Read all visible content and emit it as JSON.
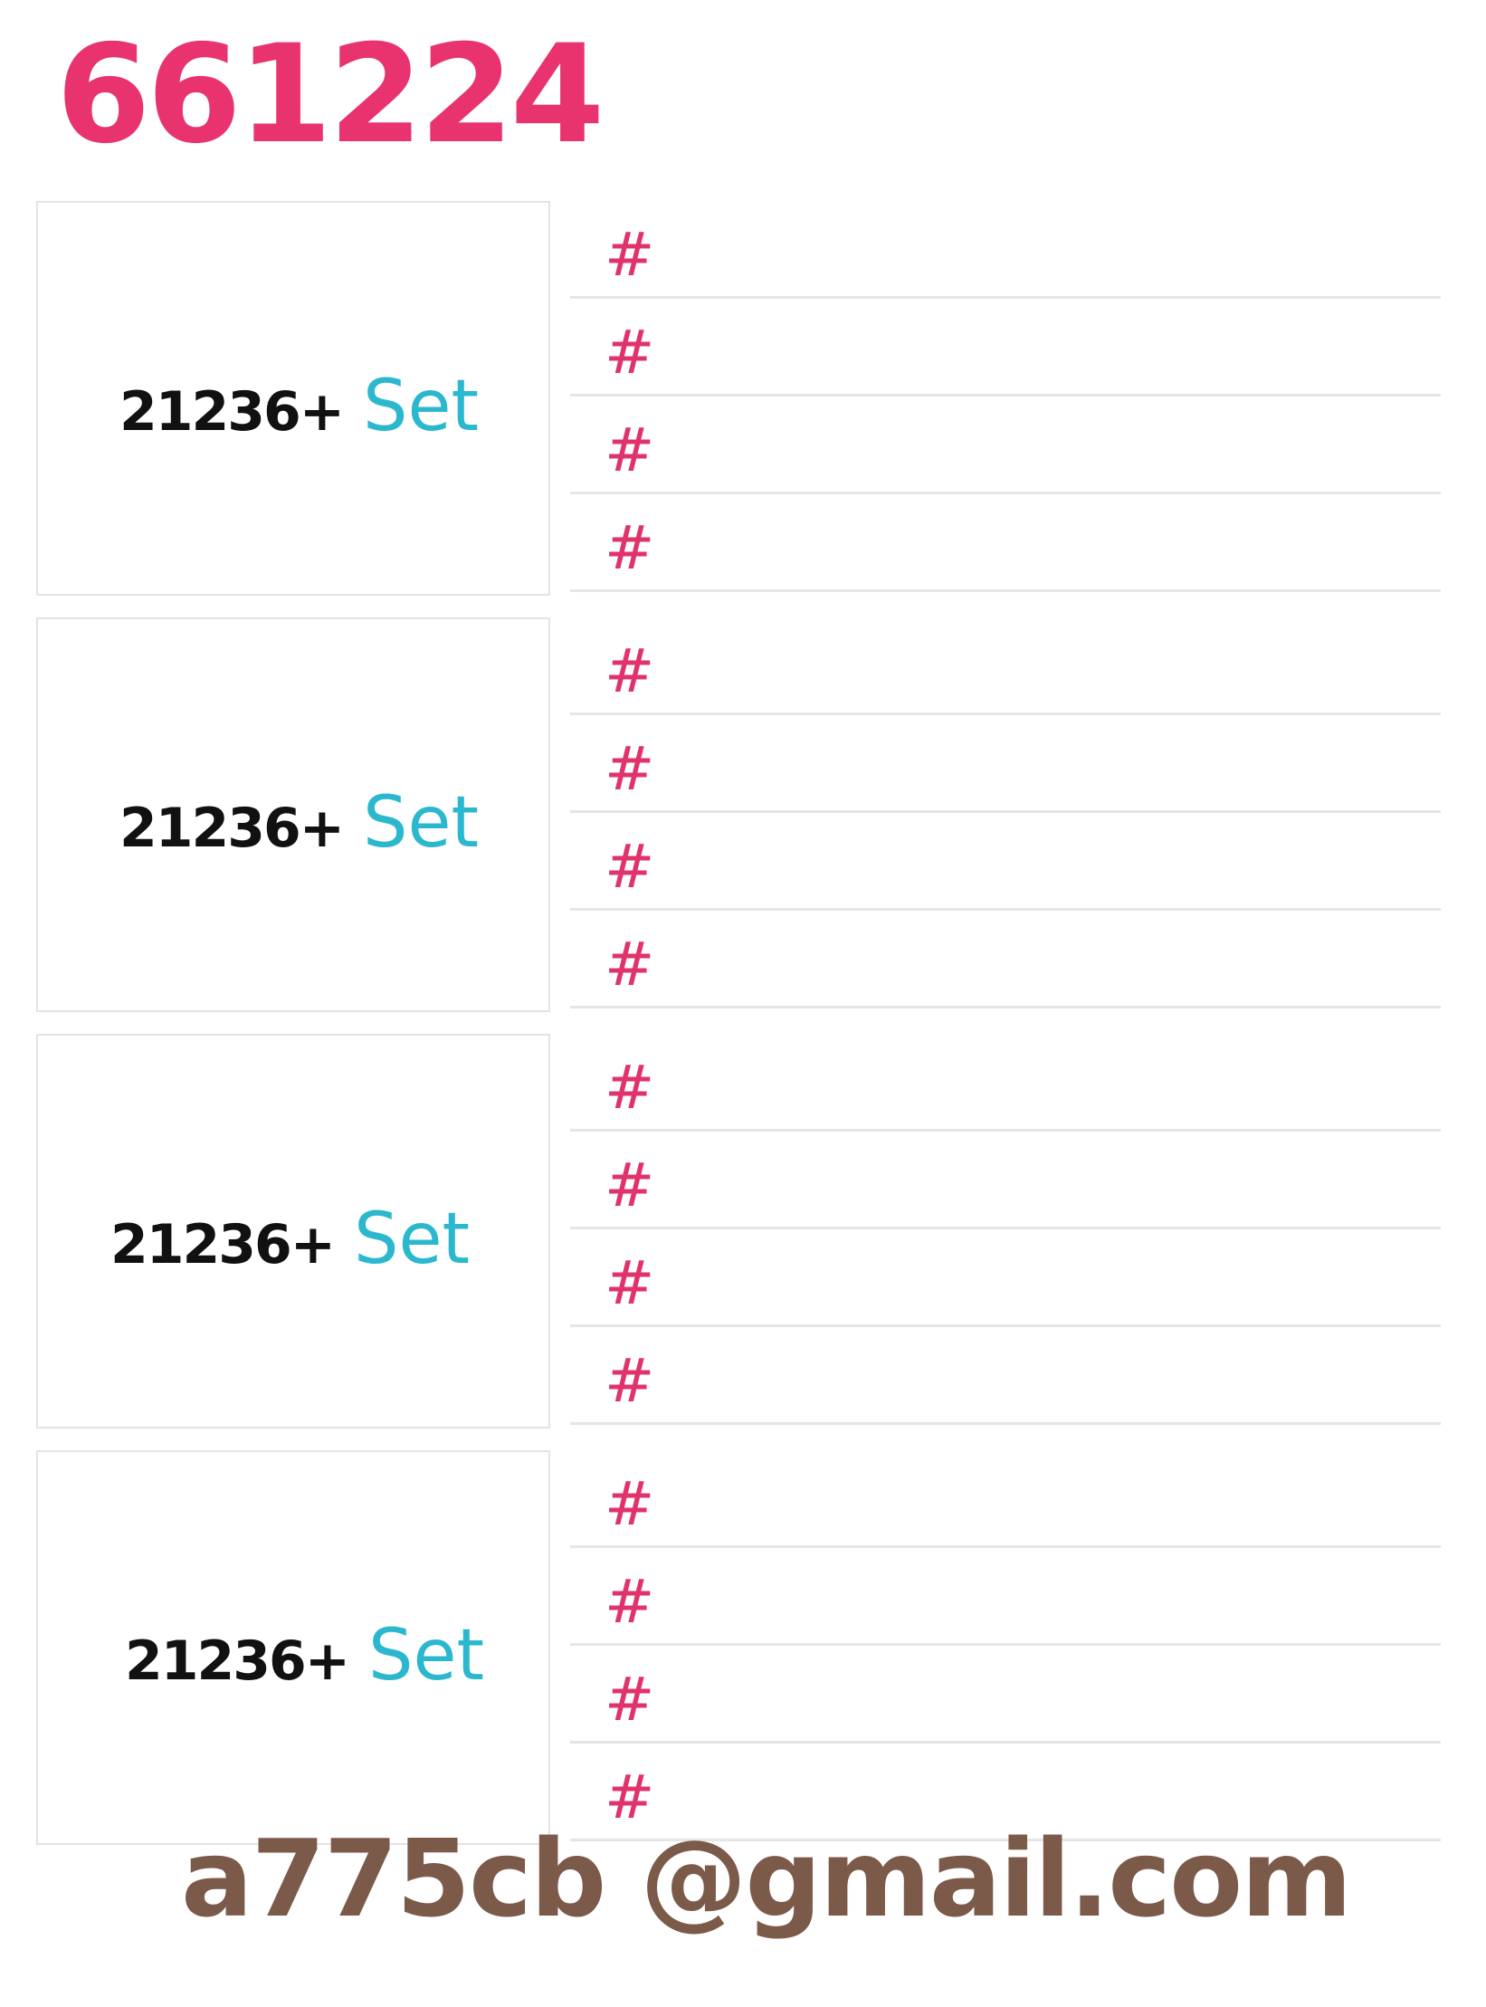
{
  "header": {
    "title": "661224"
  },
  "groups": [
    {
      "code": "21236+",
      "label": "Set",
      "lines": [
        "#",
        "#",
        "#",
        "#"
      ]
    },
    {
      "code": "21236+",
      "label": "Set",
      "lines": [
        "#",
        "#",
        "#",
        "#"
      ]
    },
    {
      "code": "21236+",
      "label": "Set",
      "lines": [
        "#",
        "#",
        "#",
        "#"
      ]
    },
    {
      "code": "21236+",
      "label": "Set",
      "lines": [
        "#",
        "#",
        "#",
        "#"
      ]
    }
  ],
  "footer": {
    "email": "a775cb @gmail.com"
  },
  "colors": {
    "title": "#e8336f",
    "hash": "#e0336b",
    "label": "#2bb8cf",
    "email": "#7c5a4a"
  }
}
